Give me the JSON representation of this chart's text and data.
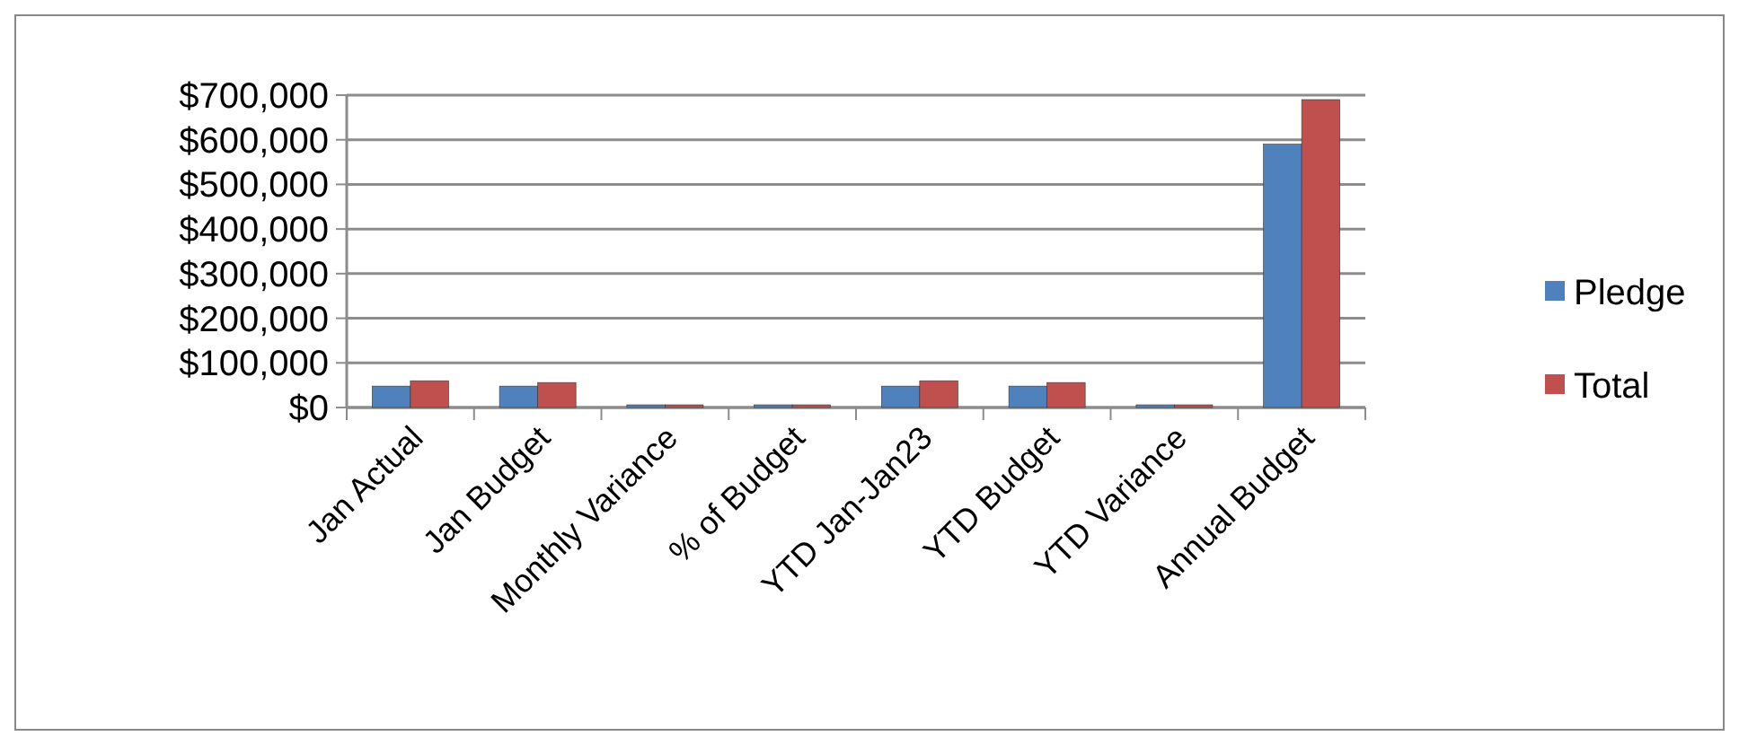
{
  "chart_data": {
    "type": "bar",
    "categories": [
      "Jan Actual",
      "Jan Budget",
      "Monthly Variance",
      "% of Budget",
      "YTD Jan-Jan23",
      "YTD Budget",
      "YTD Variance",
      "Annual Budget"
    ],
    "series": [
      {
        "name": "Pledge",
        "color": "#4f81bd",
        "values": [
          48000,
          48000,
          0,
          0,
          48000,
          48000,
          0,
          590000
        ]
      },
      {
        "name": "Total",
        "color": "#c0504d",
        "values": [
          60000,
          56000,
          0,
          0,
          60000,
          56000,
          0,
          690000
        ]
      }
    ],
    "ylim": [
      0,
      700000
    ],
    "yticks": [
      {
        "value": 0,
        "label": "$0"
      },
      {
        "value": 100000,
        "label": "$100,000"
      },
      {
        "value": 200000,
        "label": "$200,000"
      },
      {
        "value": 300000,
        "label": "$300,000"
      },
      {
        "value": 400000,
        "label": "$400,000"
      },
      {
        "value": 500000,
        "label": "$500,000"
      },
      {
        "value": 600000,
        "label": "$600,000"
      },
      {
        "value": 700000,
        "label": "$700,000"
      }
    ],
    "grid": true,
    "legend": "right"
  }
}
